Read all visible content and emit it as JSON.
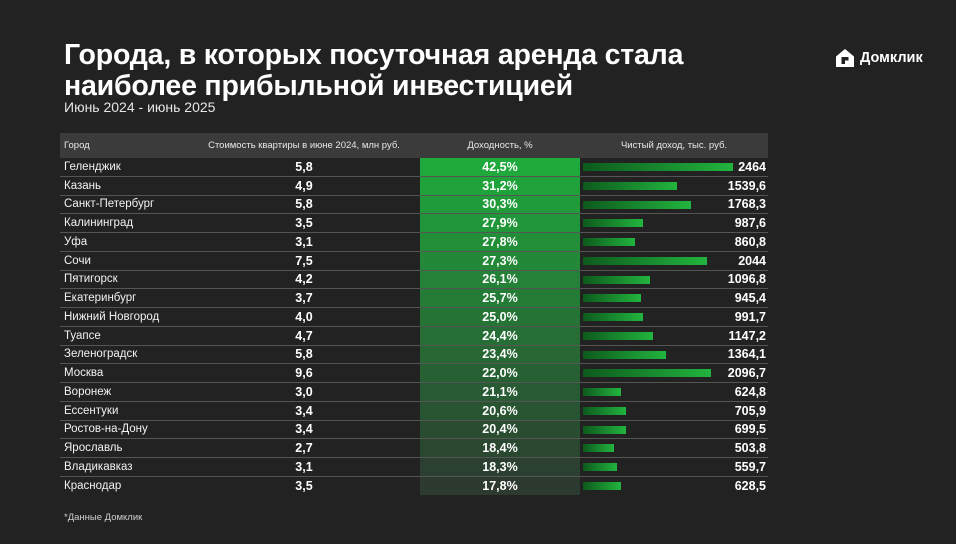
{
  "title": "Города, в которых посуточная аренда стала наиболее прибыльной инвестицией",
  "subtitle": "Июнь 2024 - июнь 2025",
  "brand": {
    "name": "Домклик",
    "icon": "domclick-house-logo"
  },
  "footnote": "*Данные Домклик",
  "colors": {
    "background": "#222222",
    "header_row": "#3b3b3b",
    "yield_top": "#1fa83b",
    "yield_bottom": "#2c3a2f",
    "bar_start": "#0d5a1d",
    "bar_end": "#22b43e"
  },
  "chart_data": {
    "type": "table",
    "title": "Города, в которых посуточная аренда стала наиболее прибыльной инвестицией",
    "subtitle": "Июнь 2024 - июнь 2025",
    "columns": [
      "Город",
      "Стоимость квартиры в июне 2024, млн руб.",
      "Доходность, %",
      "Чистый доход, тыс. руб."
    ],
    "income_max": 2464,
    "rows": [
      {
        "city": "Геленджик",
        "price": "5,8",
        "yield": "42,5%",
        "income": "2464",
        "income_value": 2464
      },
      {
        "city": "Казань",
        "price": "4,9",
        "yield": "31,2%",
        "income": "1539,6",
        "income_value": 1539.6
      },
      {
        "city": "Санкт-Петербург",
        "price": "5,8",
        "yield": "30,3%",
        "income": "1768,3",
        "income_value": 1768.3
      },
      {
        "city": "Калининград",
        "price": "3,5",
        "yield": "27,9%",
        "income": "987,6",
        "income_value": 987.6
      },
      {
        "city": "Уфа",
        "price": "3,1",
        "yield": "27,8%",
        "income": "860,8",
        "income_value": 860.8
      },
      {
        "city": "Сочи",
        "price": "7,5",
        "yield": "27,3%",
        "income": "2044",
        "income_value": 2044
      },
      {
        "city": "Пятигорск",
        "price": "4,2",
        "yield": "26,1%",
        "income": "1096,8",
        "income_value": 1096.8
      },
      {
        "city": "Екатеринбург",
        "price": "3,7",
        "yield": "25,7%",
        "income": "945,4",
        "income_value": 945.4
      },
      {
        "city": "Нижний Новгород",
        "price": "4,0",
        "yield": "25,0%",
        "income": "991,7",
        "income_value": 991.7
      },
      {
        "city": "Туапсе",
        "price": "4,7",
        "yield": "24,4%",
        "income": "1147,2",
        "income_value": 1147.2
      },
      {
        "city": "Зеленоградск",
        "price": "5,8",
        "yield": "23,4%",
        "income": "1364,1",
        "income_value": 1364.1
      },
      {
        "city": "Москва",
        "price": "9,6",
        "yield": "22,0%",
        "income": "2096,7",
        "income_value": 2096.7
      },
      {
        "city": "Воронеж",
        "price": "3,0",
        "yield": "21,1%",
        "income": "624,8",
        "income_value": 624.8
      },
      {
        "city": "Ессентуки",
        "price": "3,4",
        "yield": "20,6%",
        "income": "705,9",
        "income_value": 705.9
      },
      {
        "city": "Ростов-на-Дону",
        "price": "3,4",
        "yield": "20,4%",
        "income": "699,5",
        "income_value": 699.5
      },
      {
        "city": "Ярославль",
        "price": "2,7",
        "yield": "18,4%",
        "income": "503,8",
        "income_value": 503.8
      },
      {
        "city": "Владикавказ",
        "price": "3,1",
        "yield": "18,3%",
        "income": "559,7",
        "income_value": 559.7
      },
      {
        "city": "Краснодар",
        "price": "3,5",
        "yield": "17,8%",
        "income": "628,5",
        "income_value": 628.5
      }
    ]
  }
}
